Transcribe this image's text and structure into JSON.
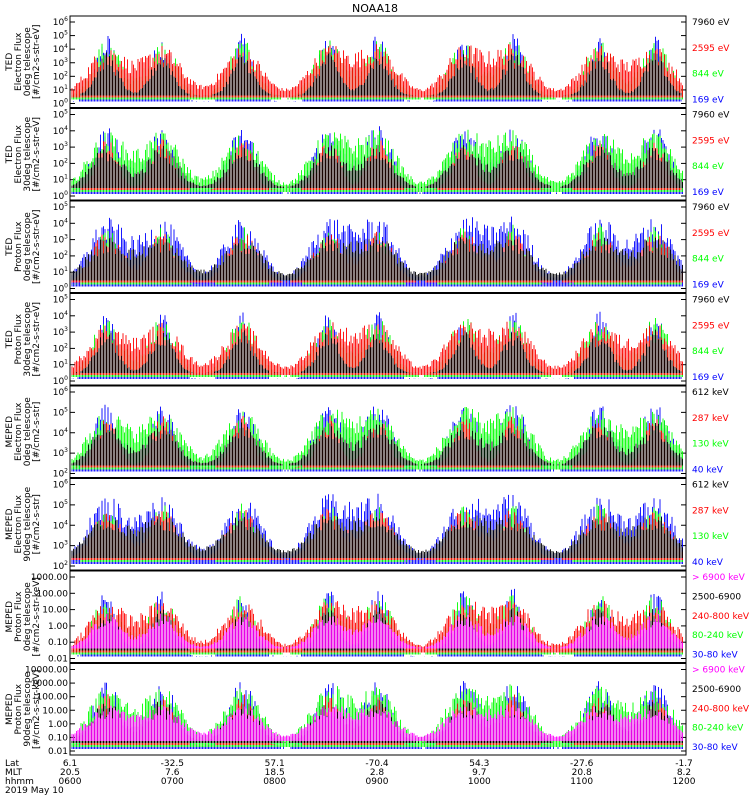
{
  "title": "NOAA18",
  "footer": {
    "row_labels": [
      "Lat",
      "MLT",
      "hhmm"
    ],
    "date": "2019 May 10",
    "columns": [
      {
        "lat": "6.1",
        "mlt": "20.5",
        "hhmm": "0600"
      },
      {
        "lat": "-32.5",
        "mlt": "7.6",
        "hhmm": "0700"
      },
      {
        "lat": "57.1",
        "mlt": "18.5",
        "hhmm": "0800"
      },
      {
        "lat": "-70.4",
        "mlt": "2.8",
        "hhmm": "0900"
      },
      {
        "lat": "54.3",
        "mlt": "9.7",
        "hhmm": "1000"
      },
      {
        "lat": "-27.6",
        "mlt": "20.8",
        "hhmm": "1100"
      },
      {
        "lat": "-1.7",
        "mlt": "8.2",
        "hhmm": "1200"
      }
    ]
  },
  "colors": {
    "black": "#000000",
    "red": "#ff0000",
    "green": "#00ff00",
    "blue": "#0000ff",
    "magenta": "#ff00ff"
  },
  "chart_data": [
    {
      "type": "line",
      "ylabel": [
        "TED",
        "Electron Flux",
        "0deg telescope",
        "[#/cm2-s-str-eV]"
      ],
      "y_ticks": [
        "10^0",
        "10^1",
        "10^2",
        "10^3",
        "10^4",
        "10^5",
        "10^6"
      ],
      "ylim": [
        1,
        1000000
      ],
      "y_scale": "log",
      "legend": [
        {
          "label": "7960 eV",
          "color": "black"
        },
        {
          "label": "2595 eV",
          "color": "red"
        },
        {
          "label": "844 eV",
          "color": "green"
        },
        {
          "label": "169 eV",
          "color": "blue"
        }
      ]
    },
    {
      "type": "line",
      "ylabel": [
        "TED",
        "Electron Flux",
        "30deg telescope",
        "[#/cm2-s-str-eV]"
      ],
      "y_ticks": [
        "10^0",
        "10^1",
        "10^2",
        "10^3",
        "10^4",
        "10^5"
      ],
      "ylim": [
        1,
        100000
      ],
      "y_scale": "log",
      "legend": [
        {
          "label": "7960 eV",
          "color": "black"
        },
        {
          "label": "2595 eV",
          "color": "red"
        },
        {
          "label": "844 eV",
          "color": "green"
        },
        {
          "label": "169 eV",
          "color": "blue"
        }
      ]
    },
    {
      "type": "line",
      "ylabel": [
        "TED",
        "Proton Flux",
        "0deg telescope",
        "[#/cm2-s-str-eV]"
      ],
      "y_ticks": [
        "10^0",
        "10^1",
        "10^2",
        "10^3",
        "10^4",
        "10^5"
      ],
      "ylim": [
        1,
        100000
      ],
      "y_scale": "log",
      "legend": [
        {
          "label": "7960 eV",
          "color": "black"
        },
        {
          "label": "2595 eV",
          "color": "red"
        },
        {
          "label": "844 eV",
          "color": "green"
        },
        {
          "label": "169 eV",
          "color": "blue"
        }
      ]
    },
    {
      "type": "line",
      "ylabel": [
        "TED",
        "Proton Flux",
        "30deg telescope",
        "[#/cm2-s-str-eV]"
      ],
      "y_ticks": [
        "10^0",
        "10^1",
        "10^2",
        "10^3",
        "10^4",
        "10^5"
      ],
      "ylim": [
        1,
        100000
      ],
      "y_scale": "log",
      "legend": [
        {
          "label": "7960 eV",
          "color": "black"
        },
        {
          "label": "2595 eV",
          "color": "red"
        },
        {
          "label": "844 eV",
          "color": "green"
        },
        {
          "label": "169 eV",
          "color": "blue"
        }
      ]
    },
    {
      "type": "line",
      "ylabel": [
        "MEPED",
        "Electron Flux",
        "0deg telescope",
        "[#/cm2-s-str]"
      ],
      "y_ticks": [
        "10^2",
        "10^3",
        "10^4",
        "10^5",
        "10^6"
      ],
      "ylim": [
        100,
        1000000
      ],
      "y_scale": "log",
      "legend": [
        {
          "label": "612 keV",
          "color": "black"
        },
        {
          "label": "287 keV",
          "color": "red"
        },
        {
          "label": "130 keV",
          "color": "green"
        },
        {
          "label": "40 keV",
          "color": "blue"
        }
      ]
    },
    {
      "type": "line",
      "ylabel": [
        "MEPED",
        "Electron Flux",
        "90deg telescope",
        "[#/cm2-s-str]"
      ],
      "y_ticks": [
        "10^2",
        "10^3",
        "10^4",
        "10^5",
        "10^6"
      ],
      "ylim": [
        100,
        1000000
      ],
      "y_scale": "log",
      "legend": [
        {
          "label": "612 keV",
          "color": "black"
        },
        {
          "label": "287 keV",
          "color": "red"
        },
        {
          "label": "130 keV",
          "color": "green"
        },
        {
          "label": "40 keV",
          "color": "blue"
        }
      ]
    },
    {
      "type": "line",
      "ylabel": [
        "MEPED",
        "Proton Flux",
        "0deg telescope",
        "[#/cm2-s-str-keV]"
      ],
      "y_ticks": [
        "0.01",
        "0.10",
        "1.00",
        "10.00",
        "100.00",
        "1000.00"
      ],
      "ylim": [
        0.01,
        10000
      ],
      "y_scale": "log",
      "legend": [
        {
          "label": "> 6900 keV",
          "color": "magenta"
        },
        {
          "label": "2500-6900",
          "color": "black"
        },
        {
          "label": "240-800 keV",
          "color": "red"
        },
        {
          "label": "80-240 keV",
          "color": "green"
        },
        {
          "label": "30-80 keV",
          "color": "blue"
        }
      ]
    },
    {
      "type": "line",
      "ylabel": [
        "MEPED",
        "Proton Flux",
        "90deg telescope",
        "[#/cm2-s-str-keV]"
      ],
      "y_ticks": [
        "0.01",
        "0.10",
        "1.00",
        "10.00",
        "100.00",
        "1000.00",
        "10000.00"
      ],
      "ylim": [
        0.01,
        10000
      ],
      "y_scale": "log",
      "legend": [
        {
          "label": "> 6900 keV",
          "color": "magenta"
        },
        {
          "label": "2500-6900",
          "color": "black"
        },
        {
          "label": "240-800 keV",
          "color": "red"
        },
        {
          "label": "80-240 keV",
          "color": "green"
        },
        {
          "label": "30-80 keV",
          "color": "blue"
        }
      ]
    }
  ]
}
